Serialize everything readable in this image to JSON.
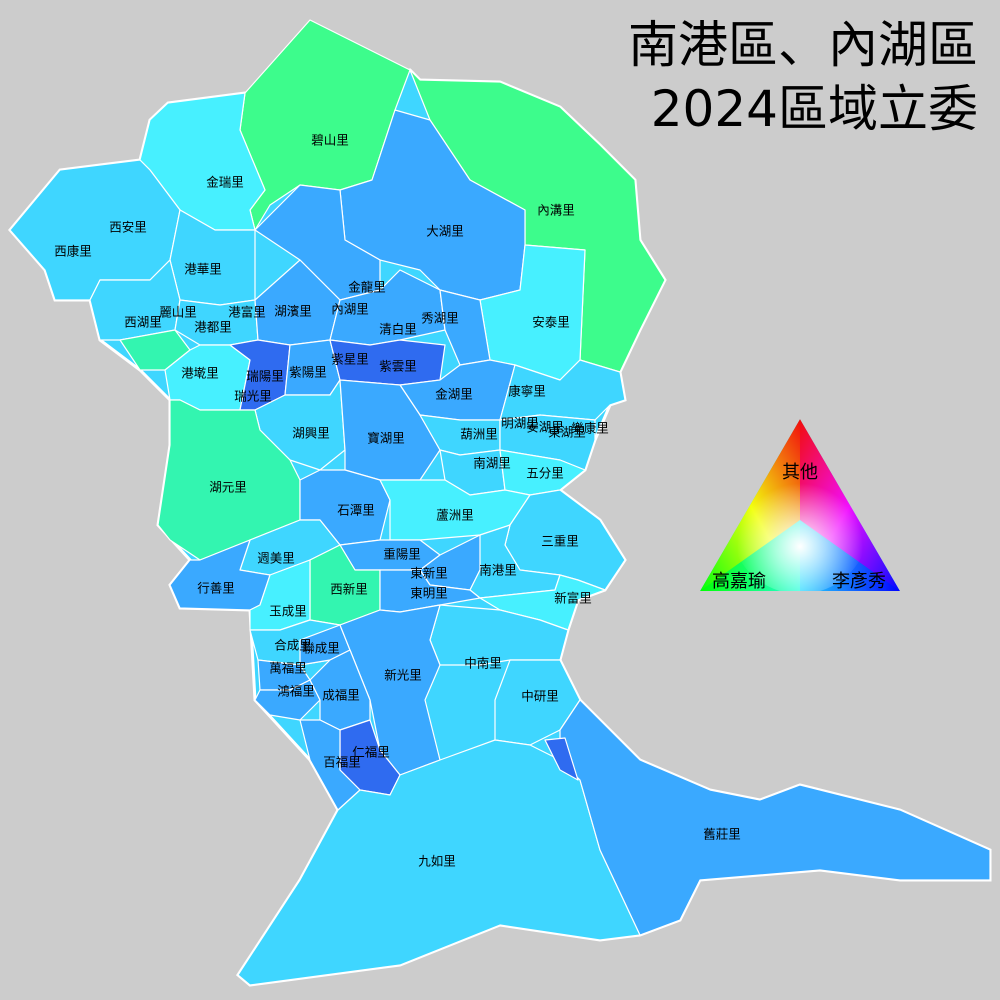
{
  "title": {
    "line1": "南港區、內湖區",
    "line2": "2024區域立委"
  },
  "legend": {
    "top": "其他",
    "left": "高嘉瑜",
    "right": "李彥秀",
    "colors": {
      "top": "#ff0000",
      "left": "#00ff00",
      "right": "#0000ff"
    }
  },
  "colors": {
    "background": "#cccccc",
    "boundary": "#ffffff",
    "green_strong": "#3dfc8c",
    "green_mid": "#33f5b0",
    "cyan": "#47f0ff",
    "sky": "#3fd6ff",
    "blue_mid": "#3aa9ff",
    "blue_dark": "#2f6bf0"
  },
  "villages": [
    {
      "name": "碧山里",
      "shade": "green_strong"
    },
    {
      "name": "金瑞里",
      "shade": "cyan"
    },
    {
      "name": "內溝里",
      "shade": "green_strong"
    },
    {
      "name": "西安里",
      "shade": "sky"
    },
    {
      "name": "西康里",
      "shade": "sky"
    },
    {
      "name": "大湖里",
      "shade": "blue_mid"
    },
    {
      "name": "港華里",
      "shade": "sky"
    },
    {
      "name": "金龍里",
      "shade": "blue_mid"
    },
    {
      "name": "內湖里",
      "shade": "blue_mid"
    },
    {
      "name": "麗山里",
      "shade": "sky"
    },
    {
      "name": "港富里",
      "shade": "sky"
    },
    {
      "name": "湖濱里",
      "shade": "blue_mid"
    },
    {
      "name": "西湖里",
      "shade": "green_mid"
    },
    {
      "name": "港都里",
      "shade": "sky"
    },
    {
      "name": "秀湖里",
      "shade": "blue_mid"
    },
    {
      "name": "安泰里",
      "shade": "cyan"
    },
    {
      "name": "清白里",
      "shade": "blue_mid"
    },
    {
      "name": "紫星里",
      "shade": "blue_mid"
    },
    {
      "name": "港墘里",
      "shade": "cyan"
    },
    {
      "name": "瑞陽里",
      "shade": "blue_dark"
    },
    {
      "name": "紫陽里",
      "shade": "blue_mid"
    },
    {
      "name": "紫雲里",
      "shade": "blue_dark"
    },
    {
      "name": "瑞光里",
      "shade": "blue_dark"
    },
    {
      "name": "金湖里",
      "shade": "blue_mid"
    },
    {
      "name": "康寧里",
      "shade": "sky"
    },
    {
      "name": "湖興里",
      "shade": "sky"
    },
    {
      "name": "寶湖里",
      "shade": "blue_mid"
    },
    {
      "name": "葫洲里",
      "shade": "sky"
    },
    {
      "name": "明湖里",
      "shade": "sky"
    },
    {
      "name": "東湖里",
      "shade": "sky"
    },
    {
      "name": "安湖里",
      "shade": "sky"
    },
    {
      "name": "樂康里",
      "shade": "sky"
    },
    {
      "name": "湖元里",
      "shade": "green_mid"
    },
    {
      "name": "南湖里",
      "shade": "sky"
    },
    {
      "name": "五分里",
      "shade": "cyan"
    },
    {
      "name": "石潭里",
      "shade": "blue_mid"
    },
    {
      "name": "蘆洲里",
      "shade": "cyan"
    },
    {
      "name": "三重里",
      "shade": "sky"
    },
    {
      "name": "週美里",
      "shade": "sky"
    },
    {
      "name": "重陽里",
      "shade": "blue_mid"
    },
    {
      "name": "東新里",
      "shade": "blue_mid"
    },
    {
      "name": "南港里",
      "shade": "sky"
    },
    {
      "name": "行善里",
      "shade": "blue_mid"
    },
    {
      "name": "西新里",
      "shade": "green_mid"
    },
    {
      "name": "東明里",
      "shade": "blue_mid"
    },
    {
      "name": "新富里",
      "shade": "cyan"
    },
    {
      "name": "玉成里",
      "shade": "cyan"
    },
    {
      "name": "合成里",
      "shade": "sky"
    },
    {
      "name": "聯成里",
      "shade": "blue_mid"
    },
    {
      "name": "中南里",
      "shade": "sky"
    },
    {
      "name": "萬福里",
      "shade": "blue_mid"
    },
    {
      "name": "新光里",
      "shade": "blue_mid"
    },
    {
      "name": "鴻福里",
      "shade": "blue_mid"
    },
    {
      "name": "成福里",
      "shade": "blue_mid"
    },
    {
      "name": "中研里",
      "shade": "sky"
    },
    {
      "name": "仁福里",
      "shade": "blue_dark"
    },
    {
      "name": "百福里",
      "shade": "blue_mid"
    },
    {
      "name": "九如里",
      "shade": "sky"
    },
    {
      "name": "舊莊里",
      "shade": "blue_mid"
    }
  ]
}
